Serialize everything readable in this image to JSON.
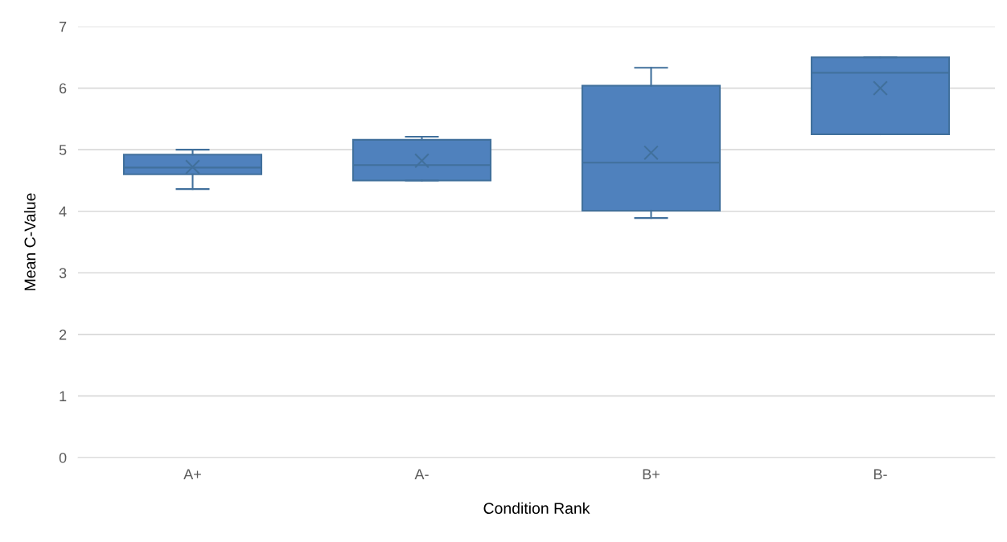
{
  "chart_data": {
    "type": "box",
    "xlabel": "Condition Rank",
    "ylabel": "Mean C-Value",
    "categories": [
      "A+",
      "A-",
      "B+",
      "B-"
    ],
    "boxes": [
      {
        "low": 4.36,
        "q1": 4.6,
        "median": 4.71,
        "q3": 4.92,
        "high": 5.0,
        "mean": 4.72
      },
      {
        "low": 4.5,
        "q1": 4.5,
        "median": 4.75,
        "q3": 5.16,
        "high": 5.21,
        "mean": 4.82
      },
      {
        "low": 3.89,
        "q1": 4.01,
        "median": 4.79,
        "q3": 6.04,
        "high": 6.33,
        "mean": 4.95
      },
      {
        "low": 5.25,
        "q1": 5.25,
        "median": 6.25,
        "q3": 6.5,
        "high": 6.5,
        "mean": 6.0
      }
    ],
    "color": "#4f81bd",
    "ylim": [
      0,
      7
    ],
    "yticks": [
      0,
      1,
      2,
      3,
      4,
      5,
      6,
      7
    ],
    "grid": "y",
    "marker": "cross"
  }
}
